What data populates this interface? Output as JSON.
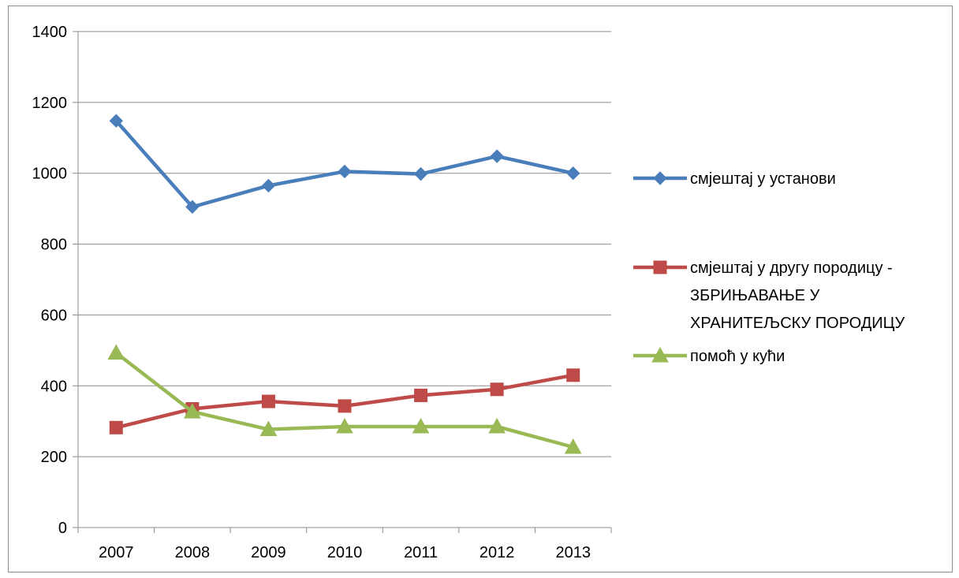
{
  "chart_data": {
    "type": "line",
    "categories": [
      "2007",
      "2008",
      "2009",
      "2010",
      "2011",
      "2012",
      "2013"
    ],
    "ylim": [
      0,
      1400
    ],
    "yticks": [
      0,
      200,
      400,
      600,
      800,
      1000,
      1200,
      1400
    ],
    "grid": true,
    "legend_position": "right",
    "series": [
      {
        "name_lines": [
          "смјештај у установи"
        ],
        "values": [
          1148,
          905,
          965,
          1005,
          998,
          1048,
          1000
        ],
        "color": "#4a7ebb",
        "marker": "diamond"
      },
      {
        "name_lines": [
          "смјештај у другу породицу -",
          "ЗБРИЊАВАЊЕ У",
          "ХРАНИТЕЉСКУ ПОРОДИЦУ"
        ],
        "values": [
          282,
          335,
          356,
          343,
          373,
          390,
          430
        ],
        "color": "#be4b48",
        "marker": "square"
      },
      {
        "name_lines": [
          "помоћ у кући"
        ],
        "values": [
          493,
          327,
          277,
          285,
          285,
          285,
          227
        ],
        "color": "#98b954",
        "marker": "triangle"
      }
    ]
  }
}
